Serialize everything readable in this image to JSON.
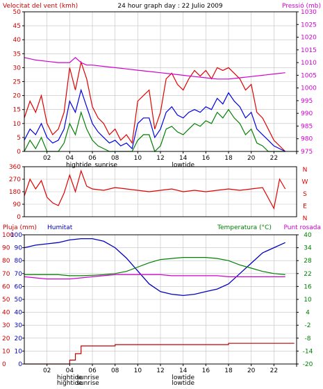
{
  "panels": [
    {
      "title_left": "Velocitat del vent (kmh)",
      "title_center": "24 hour graph day : 22 Julio 2009",
      "title_right": "Pressió (mb)"
    },
    {
      "right_labels": [
        "N",
        "W",
        "S",
        "E",
        "N"
      ]
    },
    {
      "title_rain": "Pluja (mm)",
      "title_humidity": "Humitat",
      "title_temperature": "Temperatura (°C)",
      "title_dew": "Punt rosada"
    }
  ],
  "colors": {
    "frame": "#000000",
    "grid": "#c0c0c0",
    "wind_gust": "#e00000",
    "wind_avg": "#0000e0",
    "wind_low": "#008000",
    "pressure": "#d000d0",
    "direction": "#e00000",
    "humidity": "#0000c0",
    "temperature": "#008000",
    "dewpoint": "#d000d0",
    "rain": "#c00000",
    "title_red": "#d00000",
    "title_blue": "#0000c0",
    "title_green": "#008000",
    "title_magenta": "#d000d0"
  },
  "chart_data": [
    {
      "type": "line",
      "ylabel": "Velocitat del vent (kmh)",
      "y2label": "Pressió (mb)",
      "ylim": [
        0,
        50
      ],
      "y2lim": [
        975,
        1030
      ],
      "yticks": [
        "0",
        "5",
        "10",
        "15",
        "20",
        "25",
        "30",
        "35",
        "40",
        "45",
        "50"
      ],
      "y2ticks": [
        "975",
        "980",
        "985",
        "990",
        "995",
        "1000",
        "1005",
        "1010",
        "1015",
        "1020",
        "1025",
        "1030"
      ],
      "xticks": [
        "02",
        "04",
        "06",
        "08",
        "10",
        "12",
        "14",
        "16",
        "18",
        "20",
        "22"
      ],
      "annotations": [
        "hightide",
        "sunrise",
        "lowtide"
      ],
      "grid": true,
      "series": [
        {
          "key": "gust",
          "x": [
            0,
            0.5,
            1,
            1.5,
            2,
            2.5,
            3,
            3.5,
            4,
            4.5,
            5,
            5.5,
            6,
            6.5,
            7,
            7.5,
            8,
            8.5,
            9,
            9.5,
            10,
            10.5,
            11,
            11.5,
            12,
            12.5,
            13,
            13.5,
            14,
            14.5,
            15,
            15.5,
            16,
            16.5,
            17,
            17.5,
            18,
            18.5,
            19,
            19.5,
            20,
            20.5,
            21,
            21.5,
            22,
            22.5,
            23
          ],
          "values": [
            12,
            18,
            14,
            20,
            10,
            6,
            8,
            14,
            30,
            22,
            32,
            26,
            16,
            12,
            10,
            6,
            8,
            4,
            6,
            3,
            18,
            20,
            22,
            8,
            14,
            26,
            28,
            24,
            22,
            26,
            29,
            27,
            29,
            26,
            30,
            29,
            30,
            28,
            26,
            22,
            24,
            14,
            12,
            8,
            4,
            2,
            0
          ]
        },
        {
          "key": "avg",
          "x": [
            0,
            0.5,
            1,
            1.5,
            2,
            2.5,
            3,
            3.5,
            4,
            4.5,
            5,
            5.5,
            6,
            6.5,
            7,
            7.5,
            8,
            8.5,
            9,
            9.5,
            10,
            10.5,
            11,
            11.5,
            12,
            12.5,
            13,
            13.5,
            14,
            14.5,
            15,
            15.5,
            16,
            16.5,
            17,
            17.5,
            18,
            18.5,
            19,
            19.5,
            20,
            20.5,
            21,
            21.5,
            22,
            22.5,
            23
          ],
          "values": [
            4,
            8,
            6,
            10,
            5,
            3,
            4,
            8,
            18,
            14,
            22,
            16,
            10,
            7,
            5,
            3,
            4,
            2,
            3,
            1,
            10,
            12,
            12,
            5,
            8,
            14,
            16,
            13,
            12,
            14,
            15,
            14,
            16,
            15,
            19,
            17,
            21,
            18,
            16,
            12,
            14,
            8,
            6,
            4,
            2,
            1,
            0
          ]
        },
        {
          "key": "low",
          "x": [
            0,
            0.5,
            1,
            1.5,
            2,
            2.5,
            3,
            3.5,
            4,
            4.5,
            5,
            5.5,
            6,
            6.5,
            7,
            7.5,
            8,
            8.5,
            9,
            9.5,
            10,
            10.5,
            11,
            11.5,
            12,
            12.5,
            13,
            13.5,
            14,
            14.5,
            15,
            15.5,
            16,
            16.5,
            17,
            17.5,
            18,
            18.5,
            19,
            19.5,
            20,
            20.5,
            21,
            21.5,
            22,
            22.5,
            23
          ],
          "values": [
            0,
            4,
            1,
            5,
            0,
            0,
            0,
            3,
            10,
            6,
            14,
            8,
            4,
            2,
            1,
            0,
            0,
            0,
            0,
            0,
            4,
            6,
            6,
            0,
            2,
            8,
            9,
            7,
            6,
            8,
            10,
            9,
            11,
            10,
            14,
            12,
            15,
            12,
            10,
            6,
            8,
            3,
            2,
            0,
            0,
            0,
            0
          ]
        },
        {
          "key": "pressure",
          "x": [
            0,
            1,
            2,
            3,
            4,
            4.5,
            5,
            5.5,
            6,
            7,
            8,
            9,
            10,
            11,
            12,
            13,
            14,
            15,
            16,
            17,
            18,
            19,
            20,
            21,
            22,
            23
          ],
          "values": [
            1012,
            1011,
            1010.5,
            1010,
            1010,
            1012,
            1010,
            1009,
            1009,
            1008.5,
            1008,
            1007.5,
            1007,
            1006.5,
            1006,
            1005.5,
            1005,
            1004.5,
            1004,
            1003.5,
            1003.5,
            1004,
            1004.5,
            1005,
            1005.5,
            1006
          ]
        }
      ]
    },
    {
      "type": "line",
      "ylim": [
        0,
        360
      ],
      "yticks": [
        "0",
        "90",
        "180",
        "270",
        "360"
      ],
      "grid": true,
      "series": [
        {
          "key": "direction",
          "x": [
            0,
            0.5,
            1,
            1.5,
            2,
            2.5,
            3,
            3.5,
            4,
            4.5,
            5,
            5.5,
            6,
            7,
            8,
            9,
            10,
            11,
            12,
            13,
            14,
            15,
            16,
            17,
            18,
            19,
            20,
            21,
            22,
            22.5,
            23
          ],
          "values": [
            150,
            270,
            200,
            260,
            140,
            100,
            80,
            170,
            300,
            180,
            330,
            220,
            200,
            190,
            210,
            200,
            190,
            180,
            190,
            200,
            180,
            190,
            180,
            190,
            200,
            190,
            200,
            210,
            60,
            270,
            200
          ]
        }
      ]
    },
    {
      "type": "line",
      "ylabel": "Pluja (mm)",
      "y2label": "Temperatura (°C)",
      "ylim": [
        0,
        100
      ],
      "y2lim": [
        -20,
        40
      ],
      "yticks_rain": [
        "0",
        "10",
        "20",
        "30",
        "40",
        "50",
        "60",
        "70",
        "80",
        "90",
        "100"
      ],
      "yticks_hum": [
        "0",
        "10",
        "20",
        "30",
        "40",
        "50",
        "60",
        "70",
        "80",
        "90",
        "100"
      ],
      "y2ticks": [
        "-20",
        "-14",
        "-8",
        "-2",
        "4",
        "10",
        "16",
        "22",
        "28",
        "34",
        "40"
      ],
      "xticks": [
        "02",
        "04",
        "06",
        "08",
        "10",
        "12",
        "14",
        "16",
        "18",
        "20",
        "22"
      ],
      "annotations": [
        "hightide",
        "sunrise",
        "lowtide",
        "hightide",
        "sunrise",
        "lowtide"
      ],
      "grid": true,
      "series": [
        {
          "key": "humidity",
          "x": [
            0,
            1,
            2,
            3,
            4,
            5,
            6,
            7,
            8,
            9,
            10,
            11,
            12,
            13,
            14,
            15,
            16,
            17,
            18,
            19,
            20,
            21,
            22,
            23
          ],
          "values": [
            90,
            92,
            93,
            94,
            96,
            97,
            97,
            95,
            90,
            82,
            72,
            62,
            56,
            54,
            53,
            54,
            56,
            58,
            62,
            70,
            78,
            86,
            90,
            94
          ]
        },
        {
          "key": "temperature",
          "x": [
            0,
            1,
            2,
            3,
            4,
            5,
            6,
            7,
            8,
            9,
            10,
            11,
            12,
            13,
            14,
            15,
            16,
            17,
            18,
            19,
            20,
            21,
            22,
            23
          ],
          "values": [
            21.5,
            21.5,
            21.5,
            21.5,
            21,
            21,
            21.2,
            21.5,
            22,
            23,
            25,
            27,
            28.5,
            29,
            29.5,
            29.5,
            29.5,
            29,
            28,
            26,
            24.5,
            23,
            22,
            21.5
          ]
        },
        {
          "key": "dewpoint",
          "x": [
            0,
            1,
            2,
            3,
            4,
            5,
            6,
            7,
            8,
            9,
            10,
            11,
            12,
            13,
            14,
            15,
            16,
            17,
            18,
            19,
            20,
            21,
            22,
            23
          ],
          "values": [
            20.5,
            20,
            19.5,
            19.5,
            19.5,
            20,
            20.5,
            21,
            21.5,
            21.5,
            21.5,
            21.5,
            21.5,
            21,
            21,
            21,
            21,
            21,
            20.5,
            20.5,
            20.5,
            20.5,
            20.5,
            20.5
          ]
        },
        {
          "key": "rain",
          "x": [
            0,
            3.5,
            4,
            4.5,
            5,
            6,
            8,
            10,
            12,
            14,
            16,
            18,
            20,
            22,
            23
          ],
          "values": [
            0,
            0,
            3,
            8,
            14,
            14,
            15,
            15,
            15,
            15,
            15,
            16,
            16,
            16,
            16
          ]
        }
      ]
    }
  ]
}
